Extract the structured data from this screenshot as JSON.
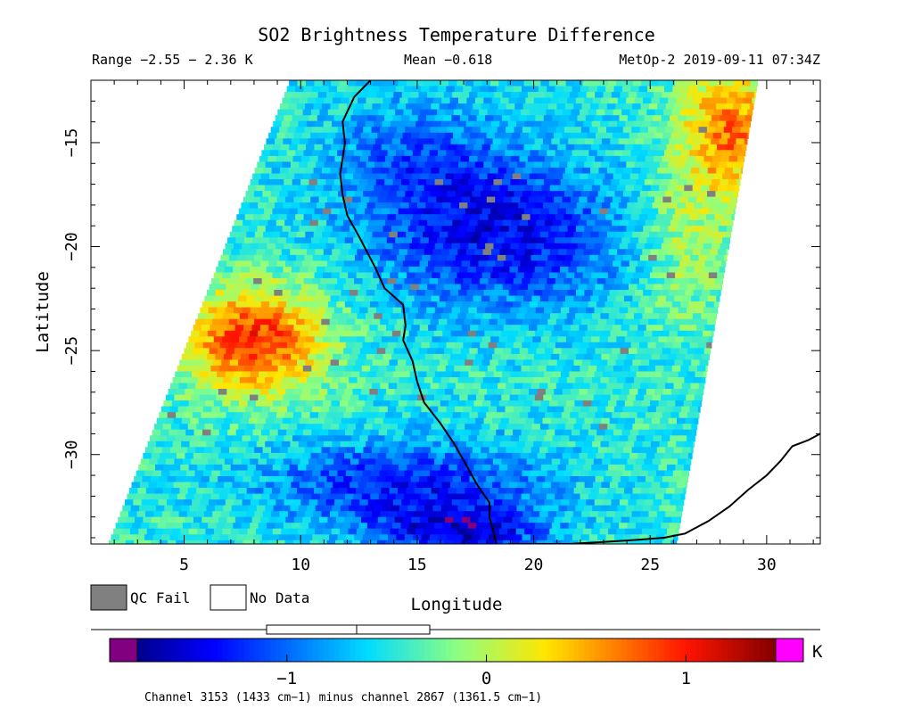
{
  "chart_data": {
    "type": "heatmap",
    "title": "SO2 Brightness Temperature Difference",
    "header": {
      "range": "Range −2.55 − 2.36 K",
      "mean": "Mean −0.618",
      "source": "MetOp-2 2019-09-11 07:34Z"
    },
    "xlabel": "Longitude",
    "ylabel": "Latitude",
    "xlim": [
      1.0,
      32.3
    ],
    "ylim": [
      -34.3,
      -12.0
    ],
    "x_ticks": [
      5,
      10,
      15,
      20,
      25,
      30
    ],
    "x_tick_labels": [
      "5",
      "10",
      "15",
      "20",
      "25",
      "30"
    ],
    "y_ticks": [
      -15,
      -20,
      -25,
      -30
    ],
    "y_tick_labels": [
      "−15",
      "−20",
      "−25",
      "−30"
    ],
    "swath": {
      "top_lon_range": [
        9.5,
        29.6
      ],
      "bottom_lon_range": [
        1.7,
        26.1
      ]
    },
    "coastline": [
      [
        13.0,
        -12.0
      ],
      [
        12.3,
        -12.8
      ],
      [
        11.8,
        -14.0
      ],
      [
        11.9,
        -15.0
      ],
      [
        11.7,
        -16.5
      ],
      [
        11.8,
        -17.5
      ],
      [
        12.0,
        -18.5
      ],
      [
        12.5,
        -19.5
      ],
      [
        13.2,
        -21.0
      ],
      [
        13.6,
        -22.0
      ],
      [
        14.4,
        -22.8
      ],
      [
        14.5,
        -23.8
      ],
      [
        14.4,
        -24.5
      ],
      [
        14.8,
        -25.5
      ],
      [
        15.0,
        -26.5
      ],
      [
        15.3,
        -27.5
      ],
      [
        16.0,
        -28.5
      ],
      [
        16.6,
        -29.5
      ],
      [
        17.1,
        -30.5
      ],
      [
        17.6,
        -31.5
      ],
      [
        18.1,
        -32.3
      ],
      [
        18.1,
        -33.0
      ],
      [
        18.3,
        -33.8
      ],
      [
        18.4,
        -34.3
      ]
    ],
    "coastline_east": [
      [
        18.9,
        -34.3
      ],
      [
        20.0,
        -34.3
      ],
      [
        21.5,
        -34.3
      ],
      [
        23.0,
        -34.2
      ],
      [
        24.5,
        -34.1
      ],
      [
        25.6,
        -34.0
      ],
      [
        26.5,
        -33.8
      ],
      [
        27.5,
        -33.2
      ],
      [
        28.4,
        -32.5
      ],
      [
        29.2,
        -31.7
      ],
      [
        30.0,
        -31.0
      ],
      [
        30.6,
        -30.3
      ],
      [
        31.1,
        -29.6
      ],
      [
        31.8,
        -29.3
      ],
      [
        32.3,
        -29.0
      ]
    ],
    "colorbar": {
      "min": -1.75,
      "max": 1.45,
      "unit": "K",
      "ticks": [
        -1,
        0,
        1
      ],
      "tick_labels": [
        "−1",
        "0",
        "1"
      ],
      "under_color": "#800080",
      "over_color": "#ff00ff",
      "mean_marker": -0.618,
      "range_box": [
        -2.55,
        2.36
      ]
    },
    "legend": [
      {
        "label": "QC Fail",
        "color": "#808080"
      },
      {
        "label": "No Data",
        "color": "#ffffff"
      }
    ],
    "footnote": "Channel 3153 (1433 cm−1) minus channel 2867 (1361.5 cm−1)",
    "features": [
      {
        "name": "low",
        "lon": 18.5,
        "lat": -19.5,
        "rx": 5.5,
        "ry": 3.6,
        "amp": -0.95
      },
      {
        "name": "low",
        "lon": 15.0,
        "lat": -15.5,
        "rx": 4.0,
        "ry": 3.0,
        "amp": -0.5
      },
      {
        "name": "low",
        "lon": 14.5,
        "lat": -31.5,
        "rx": 6.0,
        "ry": 2.2,
        "amp": -0.85
      },
      {
        "name": "low",
        "lon": 17.0,
        "lat": -33.8,
        "rx": 3.5,
        "ry": 1.3,
        "amp": -0.9
      },
      {
        "name": "high",
        "lon": 8.0,
        "lat": -24.5,
        "rx": 3.0,
        "ry": 2.6,
        "amp": 1.4
      },
      {
        "name": "high",
        "lon": 28.5,
        "lat": -14.5,
        "rx": 2.2,
        "ry": 3.2,
        "amp": 1.15
      },
      {
        "name": "high",
        "lon": 26.5,
        "lat": -20.0,
        "rx": 2.0,
        "ry": 4.0,
        "amp": 0.45
      }
    ],
    "background_value": -0.45
  }
}
